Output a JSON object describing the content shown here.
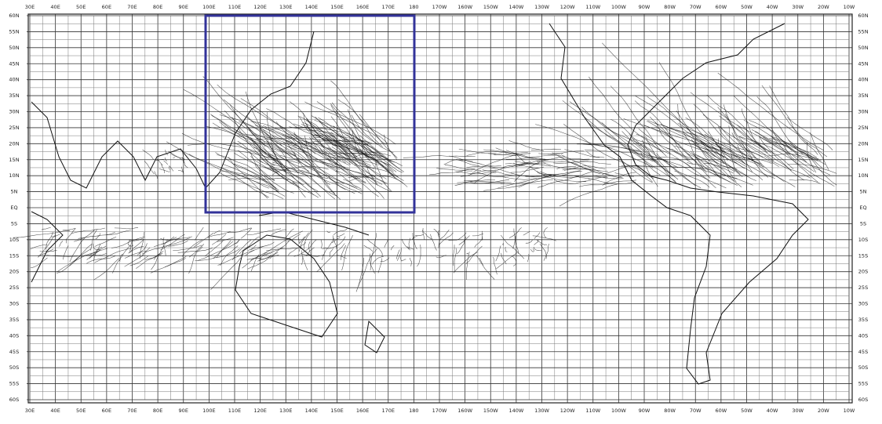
{
  "map": {
    "longitude_labels": [
      "30E",
      "40E",
      "50E",
      "60E",
      "70E",
      "80E",
      "90E",
      "100E",
      "110E",
      "120E",
      "130E",
      "140E",
      "150E",
      "160E",
      "170E",
      "180",
      "170W",
      "160W",
      "150W",
      "140W",
      "130W",
      "120W",
      "110W",
      "100W",
      "90W",
      "80W",
      "70W",
      "60W",
      "50W",
      "40W",
      "30W",
      "20W",
      "10W"
    ],
    "latitude_labels": [
      "60N",
      "55N",
      "50N",
      "45N",
      "40N",
      "35N",
      "30N",
      "25N",
      "20N",
      "15N",
      "10N",
      "5N",
      "EQ",
      "5S",
      "10S",
      "15S",
      "20S",
      "25S",
      "30S",
      "35S",
      "40S",
      "45S",
      "50S",
      "55S",
      "60S"
    ]
  }
}
